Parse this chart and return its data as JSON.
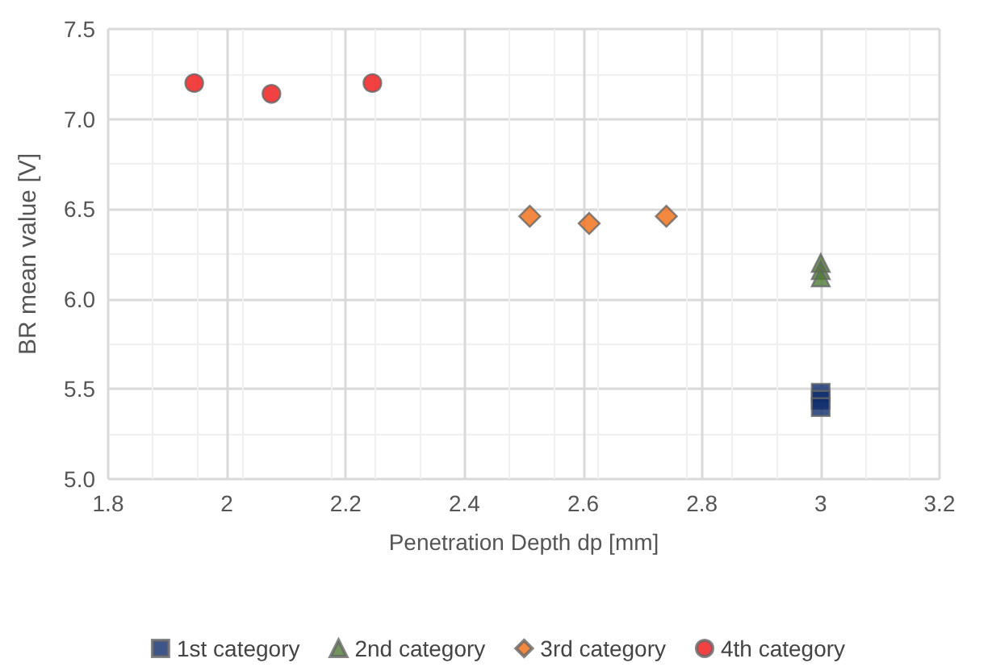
{
  "chart_data": {
    "type": "scatter",
    "xlabel": "Penetration Depth dp [mm]",
    "ylabel": "BR mean value [V]",
    "xlim": [
      1.8,
      3.2
    ],
    "xticks": [
      1.8,
      2,
      2.2,
      2.4,
      2.6,
      2.8,
      3,
      3.2
    ],
    "ylim": [
      5.0,
      7.5
    ],
    "yticks": [
      {
        "value": 5,
        "label": "5.0"
      },
      {
        "value": 5.5,
        "label": "5.5"
      },
      {
        "value": 6,
        "label": "6.0"
      },
      {
        "value": 6.5,
        "label": "6.5"
      },
      {
        "value": 7,
        "label": "7.0"
      },
      {
        "value": 7.5,
        "label": "7.5"
      }
    ],
    "grid": true,
    "legend": "bottom",
    "series": [
      {
        "name": "1st category",
        "color": "#0d2a6b",
        "marker": "square",
        "x": [
          3,
          3,
          3
        ],
        "values": [
          5.48,
          5.44,
          5.4
        ]
      },
      {
        "name": "2nd category",
        "color": "#4e7a35",
        "marker": "triangle",
        "x": [
          3,
          3,
          3
        ],
        "values": [
          6.2,
          6.16,
          6.12
        ]
      },
      {
        "name": "3rd category",
        "color": "#f06c10",
        "marker": "diamond",
        "x": [
          2.51,
          2.61,
          2.74
        ],
        "values": [
          6.46,
          6.42,
          6.46
        ]
      },
      {
        "name": "4th category",
        "color": "#ee1111",
        "marker": "circle",
        "x": [
          1.945,
          2.075,
          2.245
        ],
        "values": [
          7.2,
          7.14,
          7.2
        ]
      }
    ]
  }
}
